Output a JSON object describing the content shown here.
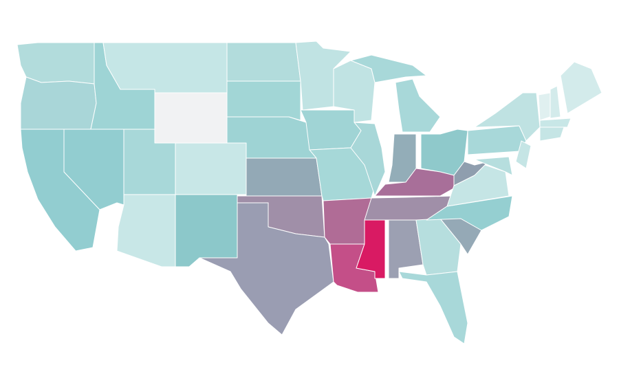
{
  "map": {
    "fills": {
      "WA": "#b2dcdc",
      "OR": "#a9d6d8",
      "CA": "#92cdd0",
      "NV": "#92cdd0",
      "ID": "#9ed4d5",
      "MT": "#c5e6e6",
      "WY": "#f1f2f3",
      "UT": "#a8d8d9",
      "AZ": "#c8e7e7",
      "CO": "#c8e7e7",
      "NM": "#8cc8ca",
      "ND": "#b2dcdc",
      "SD": "#a2d6d6",
      "NE": "#9ed3d4",
      "KS": "#93a9b6",
      "OK": "#a08fa8",
      "TX": "#9a9db2",
      "MN": "#c0e3e3",
      "IA": "#a0d4d5",
      "MO": "#a6d8d8",
      "AR": "#b06c96",
      "LA": "#c44f88",
      "WI": "#c0e3e3",
      "IL": "#a8d7d8",
      "MI": "#a8d8d9",
      "IN": "#93adb8",
      "OH": "#8fc9cb",
      "KY": "#a86f99",
      "TN": "#a08fa8",
      "MS": "#d91a63",
      "AL": "#9ca0b2",
      "GA": "#b6dede",
      "FL": "#a8d8d9",
      "SC": "#95a9b6",
      "NC": "#95cfd1",
      "VA": "#c5e5e5",
      "WV": "#8f9eae",
      "PA": "#a8d8d9",
      "NY": "#bfe2e2",
      "MD": "#b6dede",
      "NJ": "#c5e5e5",
      "VT": "#e0f0f0",
      "NH": "#d3ebeb",
      "ME": "#d3ebeb",
      "MA": "#c8e7e7",
      "CT": "#c5e5e5"
    }
  }
}
